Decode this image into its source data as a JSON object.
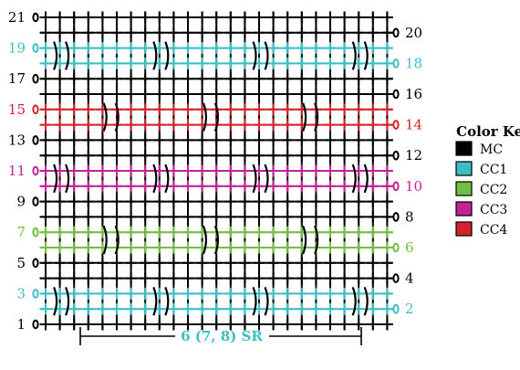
{
  "colors": {
    "MC": "#000000",
    "CC1": "#3cbfc4",
    "CC2": "#72be44",
    "CC3": "#c42493",
    "CC4": "#d2232a"
  },
  "chart": {
    "row_count": 21,
    "stitches_per_row": 25,
    "stitch_symbol": "sc-cross",
    "turning_chain_symbol": "chain-oval",
    "rows": [
      {
        "row": 1,
        "color": "MC",
        "clusters": "none"
      },
      {
        "row": 2,
        "color": "CC1",
        "clusters": "A"
      },
      {
        "row": 3,
        "color": "CC1",
        "clusters": "A"
      },
      {
        "row": 4,
        "color": "MC",
        "clusters": "none"
      },
      {
        "row": 5,
        "color": "MC",
        "clusters": "none"
      },
      {
        "row": 6,
        "color": "CC2",
        "clusters": "B"
      },
      {
        "row": 7,
        "color": "CC2",
        "clusters": "B"
      },
      {
        "row": 8,
        "color": "MC",
        "clusters": "none"
      },
      {
        "row": 9,
        "color": "MC",
        "clusters": "none"
      },
      {
        "row": 10,
        "color": "CC3",
        "clusters": "A"
      },
      {
        "row": 11,
        "color": "CC3",
        "clusters": "A"
      },
      {
        "row": 12,
        "color": "MC",
        "clusters": "none"
      },
      {
        "row": 13,
        "color": "MC",
        "clusters": "none"
      },
      {
        "row": 14,
        "color": "CC4",
        "clusters": "B"
      },
      {
        "row": 15,
        "color": "CC4",
        "clusters": "B"
      },
      {
        "row": 16,
        "color": "MC",
        "clusters": "none"
      },
      {
        "row": 17,
        "color": "MC",
        "clusters": "none"
      },
      {
        "row": 18,
        "color": "CC1",
        "clusters": "A"
      },
      {
        "row": 19,
        "color": "CC1",
        "clusters": "A"
      },
      {
        "row": 20,
        "color": "MC",
        "clusters": "none"
      },
      {
        "row": 21,
        "color": "MC",
        "clusters": "none"
      }
    ],
    "cluster_sets": {
      "A": [
        1,
        8,
        15,
        22
      ],
      "B": [
        4.5,
        11.5,
        18.5
      ]
    }
  },
  "row_labels_left": [
    "1",
    "3",
    "5",
    "7",
    "9",
    "11",
    "13",
    "15",
    "17",
    "19",
    "21"
  ],
  "row_labels_right": [
    "2",
    "4",
    "6",
    "8",
    "10",
    "12",
    "14",
    "16",
    "18",
    "20"
  ],
  "color_key": {
    "title": "Color Key",
    "items": [
      {
        "label": "MC",
        "color": "MC"
      },
      {
        "label": "CC1",
        "color": "CC1"
      },
      {
        "label": "CC2",
        "color": "CC2"
      },
      {
        "label": "CC3",
        "color": "CC3"
      },
      {
        "label": "CC4",
        "color": "CC4"
      }
    ]
  },
  "repeat": {
    "label": "6 (7, 8) SR",
    "color": "CC1"
  }
}
